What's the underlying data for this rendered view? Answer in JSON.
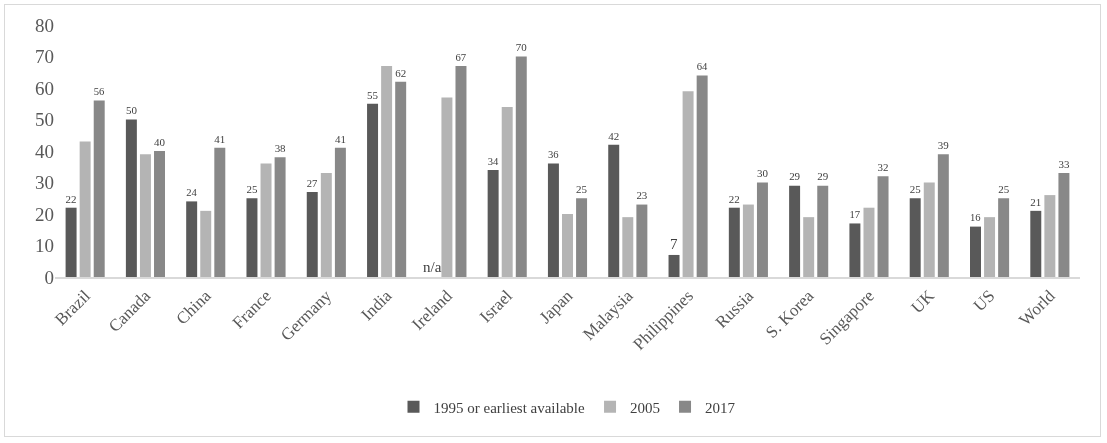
{
  "chart_data": {
    "type": "bar",
    "categories": [
      "Brazil",
      "Canada",
      "China",
      "France",
      "Germany",
      "India",
      "Ireland",
      "Israel",
      "Japan",
      "Malaysia",
      "Philippines",
      "Russia",
      "S. Korea",
      "Singapore",
      "UK",
      "US",
      "World"
    ],
    "series": [
      {
        "name": "1995 or earliest available",
        "color": "#595959",
        "values": [
          22,
          50,
          24,
          25,
          27,
          55,
          null,
          34,
          36,
          42,
          7,
          22,
          29,
          17,
          25,
          16,
          21
        ],
        "value_labels": [
          "22",
          "50",
          "24",
          "25",
          "27",
          "55",
          "n/a",
          "34",
          "36",
          "42",
          "7",
          "22",
          "29",
          "17",
          "25",
          "16",
          "21"
        ]
      },
      {
        "name": "2005",
        "color": "#b4b4b4",
        "values": [
          43,
          39,
          21,
          36,
          33,
          67,
          57,
          54,
          20,
          19,
          59,
          23,
          19,
          22,
          30,
          19,
          26
        ]
      },
      {
        "name": "2017",
        "color": "#888888",
        "values": [
          56,
          40,
          41,
          38,
          41,
          62,
          67,
          70,
          25,
          23,
          64,
          30,
          29,
          32,
          39,
          25,
          33
        ],
        "value_labels": [
          "56",
          "40",
          "41",
          "38",
          "41",
          "62",
          "67",
          "70",
          "25",
          "23",
          "64",
          "30",
          "29",
          "32",
          "39",
          "25",
          "33"
        ]
      }
    ],
    "ylim": [
      0,
      80
    ],
    "yticks": [
      0,
      10,
      20,
      30,
      40,
      50,
      60,
      70,
      80
    ],
    "grid": false,
    "legend": "bottom"
  }
}
